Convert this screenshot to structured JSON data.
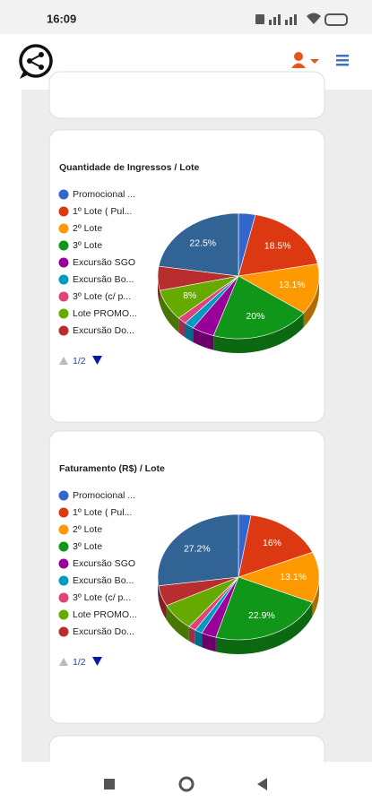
{
  "status_bar": {
    "time": "16:09"
  },
  "chart_data": [
    {
      "type": "pie",
      "title": "Quantidade de Ingressos / Lote",
      "categories": [
        "Promocional ...",
        "1º Lote ( Pul...",
        "2º Lote",
        "3º Lote",
        "Excursão SGO",
        "Excursão Bo...",
        "3º Lote (c/ p...",
        "Lote PROMO...",
        "Excursão Do...",
        null
      ],
      "values": [
        3.4,
        18.5,
        13.1,
        20,
        4.5,
        2,
        1.8,
        8,
        6.2,
        22.5
      ],
      "value_labels": [
        null,
        "18.5%",
        "13.1%",
        "20%",
        null,
        null,
        null,
        "8%",
        null,
        "22.5%"
      ],
      "colors": [
        "#3366cc",
        "#dc3912",
        "#ff9900",
        "#109618",
        "#990099",
        "#0099c6",
        "#dd4477",
        "#66aa00",
        "#b82e2e",
        "#316395"
      ],
      "legend_pager": "1/2"
    },
    {
      "type": "pie",
      "title": "Faturamento (R$) / Lote",
      "categories": [
        "Promocional ...",
        "1º Lote ( Pul...",
        "2º Lote",
        "3º Lote",
        "Excursão SGO",
        "Excursão Bo...",
        "3º Lote (c/ p...",
        "Lote PROMO...",
        "Excursão Do...",
        null
      ],
      "values": [
        2.5,
        16,
        13.1,
        22.9,
        3,
        1.5,
        1.5,
        7,
        5.3,
        27.2
      ],
      "value_labels": [
        null,
        "16%",
        "13.1%",
        "22.9%",
        null,
        null,
        null,
        null,
        null,
        "27.2%"
      ],
      "colors": [
        "#3366cc",
        "#dc3912",
        "#ff9900",
        "#109618",
        "#990099",
        "#0099c6",
        "#dd4477",
        "#66aa00",
        "#b82e2e",
        "#316395"
      ],
      "legend_pager": "1/2"
    }
  ]
}
